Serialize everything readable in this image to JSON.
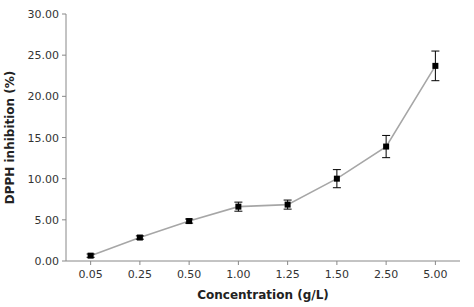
{
  "chart_data": {
    "type": "line",
    "categories": [
      "0.05",
      "0.25",
      "0.50",
      "1.00",
      "1.25",
      "1.50",
      "2.50",
      "5.00"
    ],
    "values": [
      0.65,
      2.85,
      4.85,
      6.6,
      6.85,
      10.0,
      13.9,
      23.7
    ],
    "errors": [
      0.2,
      0.2,
      0.25,
      0.55,
      0.55,
      1.1,
      1.35,
      1.8
    ],
    "color": "#000000",
    "marker": "square",
    "xlabel": "Concentration (g/L)",
    "ylabel": "DPPH inhibition (%)",
    "ylim": [
      0.0,
      30.0
    ],
    "yticks": [
      {
        "value": 0.0,
        "label": "0.00"
      },
      {
        "value": 5.0,
        "label": "5.00"
      },
      {
        "value": 10.0,
        "label": "10.00"
      },
      {
        "value": 15.0,
        "label": "15.00"
      },
      {
        "value": 20.0,
        "label": "20.00"
      },
      {
        "value": 25.0,
        "label": "25.00"
      },
      {
        "value": 30.0,
        "label": "30.00"
      }
    ],
    "grid": false
  }
}
